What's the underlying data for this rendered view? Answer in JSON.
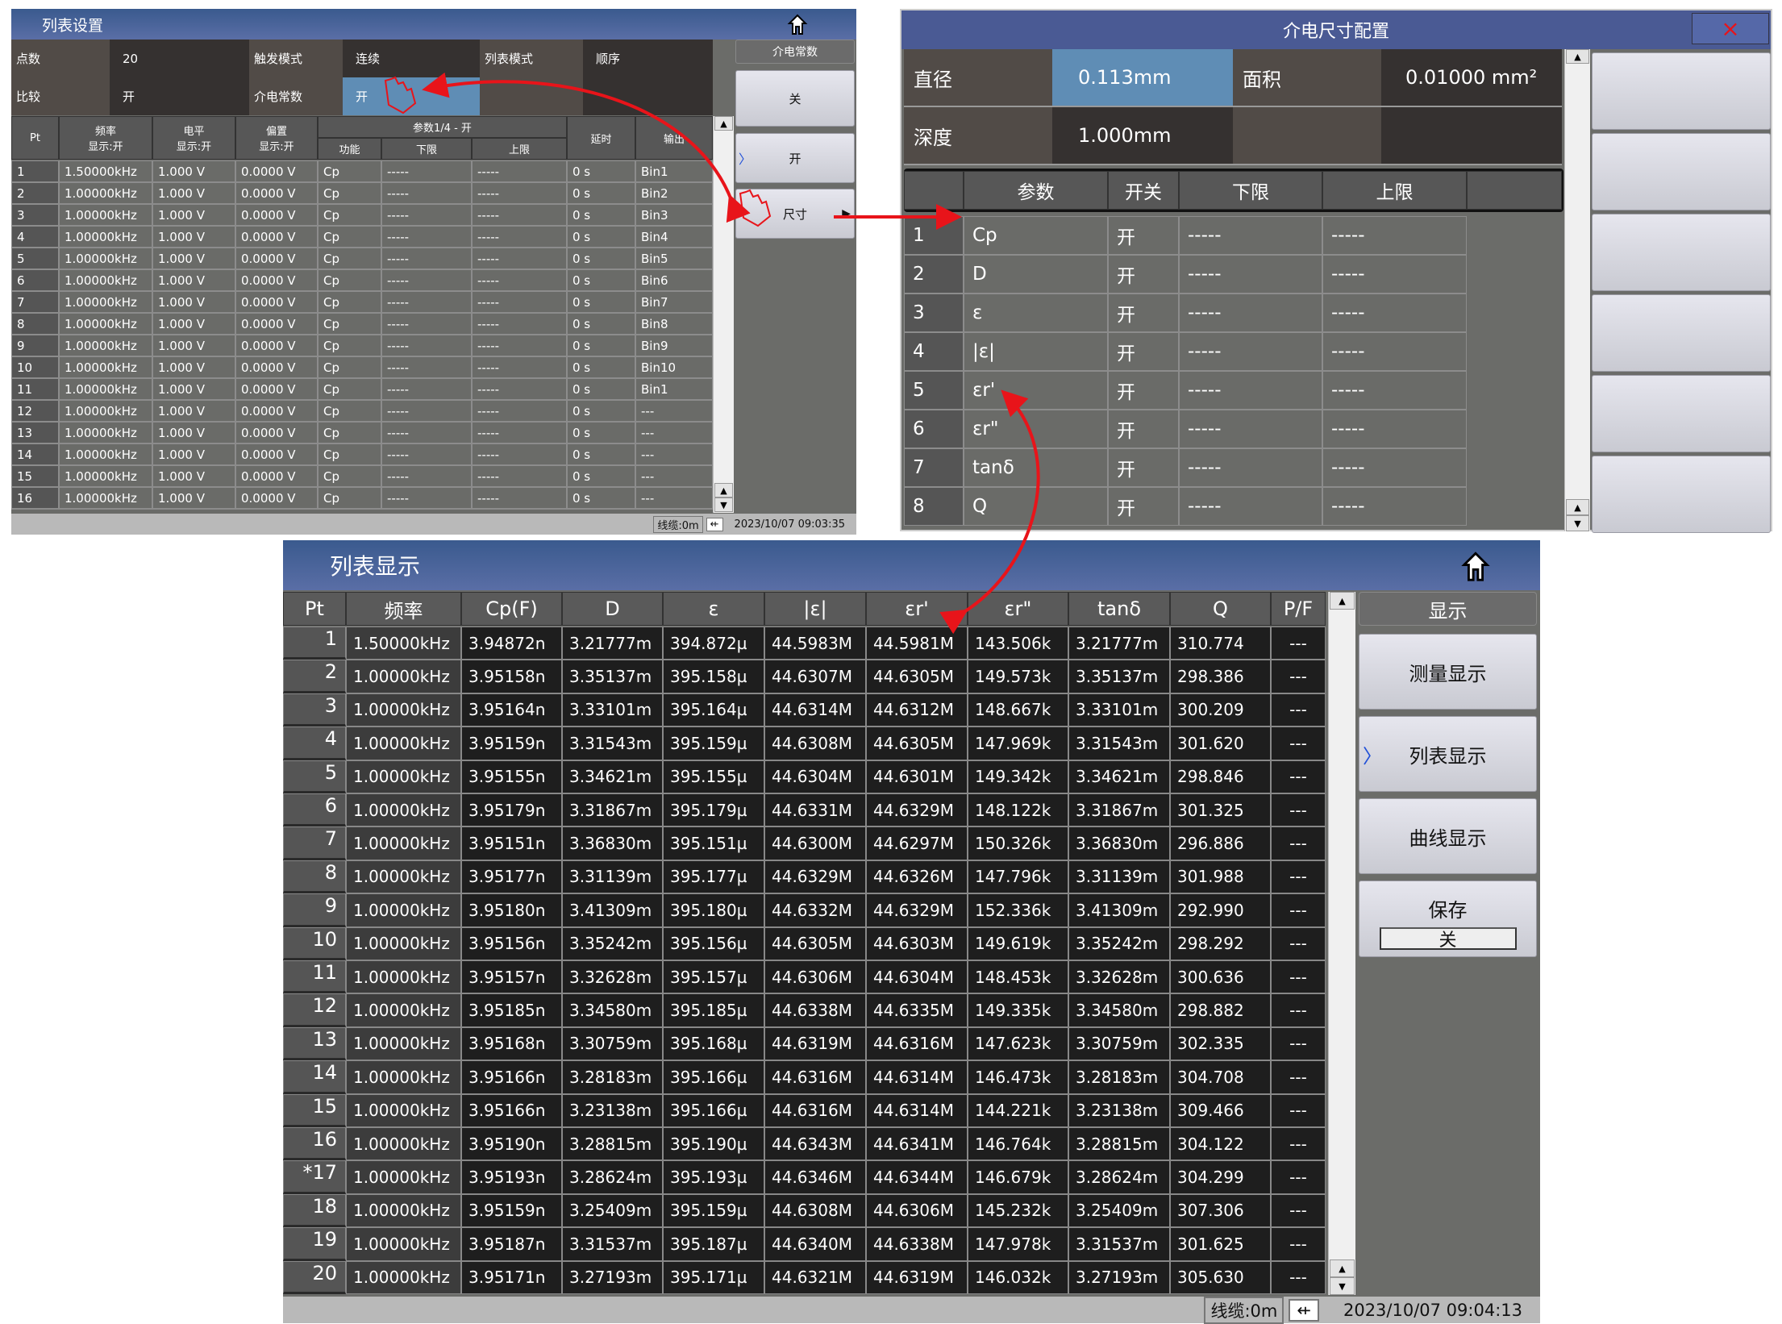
{
  "list_setup": {
    "title": "列表设置",
    "params": [
      [
        {
          "label": "点数",
          "value": "20"
        },
        {
          "label": "触发模式",
          "value": "连续"
        },
        {
          "label": "列表模式",
          "value": "顺序"
        }
      ],
      [
        {
          "label": "比较",
          "value": "开"
        },
        {
          "label": "介电常数",
          "value": "开"
        },
        {
          "label": "",
          "value": ""
        }
      ]
    ],
    "headers": [
      "Pt",
      "频率\n显示:开",
      "电平\n显示:开",
      "偏置\n显示:开",
      "功能",
      "下限",
      "上限",
      "延时",
      "输出"
    ],
    "group_header": "参数1/4 - 开",
    "rows": [
      [
        "1",
        "1.50000kHz",
        "1.000 V",
        "0.0000 V",
        "Cp",
        "-----",
        "-----",
        "0 s",
        "Bin1"
      ],
      [
        "2",
        "1.00000kHz",
        "1.000 V",
        "0.0000 V",
        "Cp",
        "-----",
        "-----",
        "0 s",
        "Bin2"
      ],
      [
        "3",
        "1.00000kHz",
        "1.000 V",
        "0.0000 V",
        "Cp",
        "-----",
        "-----",
        "0 s",
        "Bin3"
      ],
      [
        "4",
        "1.00000kHz",
        "1.000 V",
        "0.0000 V",
        "Cp",
        "-----",
        "-----",
        "0 s",
        "Bin4"
      ],
      [
        "5",
        "1.00000kHz",
        "1.000 V",
        "0.0000 V",
        "Cp",
        "-----",
        "-----",
        "0 s",
        "Bin5"
      ],
      [
        "6",
        "1.00000kHz",
        "1.000 V",
        "0.0000 V",
        "Cp",
        "-----",
        "-----",
        "0 s",
        "Bin6"
      ],
      [
        "7",
        "1.00000kHz",
        "1.000 V",
        "0.0000 V",
        "Cp",
        "-----",
        "-----",
        "0 s",
        "Bin7"
      ],
      [
        "8",
        "1.00000kHz",
        "1.000 V",
        "0.0000 V",
        "Cp",
        "-----",
        "-----",
        "0 s",
        "Bin8"
      ],
      [
        "9",
        "1.00000kHz",
        "1.000 V",
        "0.0000 V",
        "Cp",
        "-----",
        "-----",
        "0 s",
        "Bin9"
      ],
      [
        "10",
        "1.00000kHz",
        "1.000 V",
        "0.0000 V",
        "Cp",
        "-----",
        "-----",
        "0 s",
        "Bin10"
      ],
      [
        "11",
        "1.00000kHz",
        "1.000 V",
        "0.0000 V",
        "Cp",
        "-----",
        "-----",
        "0 s",
        "Bin1"
      ],
      [
        "12",
        "1.00000kHz",
        "1.000 V",
        "0.0000 V",
        "Cp",
        "-----",
        "-----",
        "0 s",
        "---"
      ],
      [
        "13",
        "1.00000kHz",
        "1.000 V",
        "0.0000 V",
        "Cp",
        "-----",
        "-----",
        "0 s",
        "---"
      ],
      [
        "14",
        "1.00000kHz",
        "1.000 V",
        "0.0000 V",
        "Cp",
        "-----",
        "-----",
        "0 s",
        "---"
      ],
      [
        "15",
        "1.00000kHz",
        "1.000 V",
        "0.0000 V",
        "Cp",
        "-----",
        "-----",
        "0 s",
        "---"
      ],
      [
        "16",
        "1.00000kHz",
        "1.000 V",
        "0.0000 V",
        "Cp",
        "-----",
        "-----",
        "0 s",
        "---"
      ]
    ],
    "side": {
      "header": "介电常数",
      "buttons": [
        "关",
        "开",
        "尺寸"
      ],
      "selected": 1
    },
    "status": {
      "cable": "线缆:0m",
      "datetime": "2023/10/07 09:03:35"
    }
  },
  "dielectric_config": {
    "title": "介电尺寸配置",
    "close": "×",
    "params": [
      [
        {
          "label": "直径",
          "value": "0.113mm"
        },
        {
          "label": "面积",
          "value": "0.01000 mm²"
        }
      ],
      [
        {
          "label": "深度",
          "value": "1.000mm"
        },
        {
          "label": "",
          "value": ""
        }
      ]
    ],
    "headers": [
      "",
      "参数",
      "开关",
      "下限",
      "上限",
      ""
    ],
    "rows": [
      [
        "1",
        "Cp",
        "开",
        "-----",
        "-----"
      ],
      [
        "2",
        "D",
        "开",
        "-----",
        "-----"
      ],
      [
        "3",
        "ε",
        "开",
        "-----",
        "-----"
      ],
      [
        "4",
        "|ε|",
        "开",
        "-----",
        "-----"
      ],
      [
        "5",
        "εr'",
        "开",
        "-----",
        "-----"
      ],
      [
        "6",
        "εr\"",
        "开",
        "-----",
        "-----"
      ],
      [
        "7",
        "tanδ",
        "开",
        "-----",
        "-----"
      ],
      [
        "8",
        "Q",
        "开",
        "-----",
        "-----"
      ]
    ]
  },
  "list_display": {
    "title": "列表显示",
    "headers": [
      "Pt",
      "频率",
      "Cp(F)",
      "D",
      "ε",
      "|ε|",
      "εr'",
      "εr\"",
      "tanδ",
      "Q",
      "P/F"
    ],
    "rows": [
      [
        "1",
        "1.50000kHz",
        "3.94872n",
        "3.21777m",
        "394.872µ",
        "44.5983M",
        "44.5981M",
        "143.506k",
        "3.21777m",
        "310.774",
        "---"
      ],
      [
        "2",
        "1.00000kHz",
        "3.95158n",
        "3.35137m",
        "395.158µ",
        "44.6307M",
        "44.6305M",
        "149.573k",
        "3.35137m",
        "298.386",
        "---"
      ],
      [
        "3",
        "1.00000kHz",
        "3.95164n",
        "3.33101m",
        "395.164µ",
        "44.6314M",
        "44.6312M",
        "148.667k",
        "3.33101m",
        "300.209",
        "---"
      ],
      [
        "4",
        "1.00000kHz",
        "3.95159n",
        "3.31543m",
        "395.159µ",
        "44.6308M",
        "44.6305M",
        "147.969k",
        "3.31543m",
        "301.620",
        "---"
      ],
      [
        "5",
        "1.00000kHz",
        "3.95155n",
        "3.34621m",
        "395.155µ",
        "44.6304M",
        "44.6301M",
        "149.342k",
        "3.34621m",
        "298.846",
        "---"
      ],
      [
        "6",
        "1.00000kHz",
        "3.95179n",
        "3.31867m",
        "395.179µ",
        "44.6331M",
        "44.6329M",
        "148.122k",
        "3.31867m",
        "301.325",
        "---"
      ],
      [
        "7",
        "1.00000kHz",
        "3.95151n",
        "3.36830m",
        "395.151µ",
        "44.6300M",
        "44.6297M",
        "150.326k",
        "3.36830m",
        "296.886",
        "---"
      ],
      [
        "8",
        "1.00000kHz",
        "3.95177n",
        "3.31139m",
        "395.177µ",
        "44.6329M",
        "44.6326M",
        "147.796k",
        "3.31139m",
        "301.988",
        "---"
      ],
      [
        "9",
        "1.00000kHz",
        "3.95180n",
        "3.41309m",
        "395.180µ",
        "44.6332M",
        "44.6329M",
        "152.336k",
        "3.41309m",
        "292.990",
        "---"
      ],
      [
        "10",
        "1.00000kHz",
        "3.95156n",
        "3.35242m",
        "395.156µ",
        "44.6305M",
        "44.6303M",
        "149.619k",
        "3.35242m",
        "298.292",
        "---"
      ],
      [
        "11",
        "1.00000kHz",
        "3.95157n",
        "3.32628m",
        "395.157µ",
        "44.6306M",
        "44.6304M",
        "148.453k",
        "3.32628m",
        "300.636",
        "---"
      ],
      [
        "12",
        "1.00000kHz",
        "3.95185n",
        "3.34580m",
        "395.185µ",
        "44.6338M",
        "44.6335M",
        "149.335k",
        "3.34580m",
        "298.882",
        "---"
      ],
      [
        "13",
        "1.00000kHz",
        "3.95168n",
        "3.30759m",
        "395.168µ",
        "44.6319M",
        "44.6316M",
        "147.623k",
        "3.30759m",
        "302.335",
        "---"
      ],
      [
        "14",
        "1.00000kHz",
        "3.95166n",
        "3.28183m",
        "395.166µ",
        "44.6316M",
        "44.6314M",
        "146.473k",
        "3.28183m",
        "304.708",
        "---"
      ],
      [
        "15",
        "1.00000kHz",
        "3.95166n",
        "3.23138m",
        "395.166µ",
        "44.6316M",
        "44.6314M",
        "144.221k",
        "3.23138m",
        "309.466",
        "---"
      ],
      [
        "16",
        "1.00000kHz",
        "3.95190n",
        "3.28815m",
        "395.190µ",
        "44.6343M",
        "44.6341M",
        "146.764k",
        "3.28815m",
        "304.122",
        "---"
      ],
      [
        "*17",
        "1.00000kHz",
        "3.95193n",
        "3.28624m",
        "395.193µ",
        "44.6346M",
        "44.6344M",
        "146.679k",
        "3.28624m",
        "304.299",
        "---"
      ],
      [
        "18",
        "1.00000kHz",
        "3.95159n",
        "3.25409m",
        "395.159µ",
        "44.6308M",
        "44.6306M",
        "145.232k",
        "3.25409m",
        "307.306",
        "---"
      ],
      [
        "19",
        "1.00000kHz",
        "3.95187n",
        "3.31537m",
        "395.187µ",
        "44.6340M",
        "44.6338M",
        "147.978k",
        "3.31537m",
        "301.625",
        "---"
      ],
      [
        "20",
        "1.00000kHz",
        "3.95171n",
        "3.27193m",
        "395.171µ",
        "44.6321M",
        "44.6319M",
        "146.032k",
        "3.27193m",
        "305.630",
        "---"
      ]
    ],
    "side": {
      "header": "显示",
      "buttons": [
        "测量显示",
        "列表显示",
        "曲线显示"
      ],
      "selected": 1,
      "save_label": "保存",
      "save_value": "关"
    },
    "status": {
      "cable": "线缆:0m",
      "datetime": "2023/10/07 09:04:13"
    }
  },
  "colors": {
    "accent_blue": "#5f8db5",
    "annotation_red": "#e8141a",
    "title_bar": "#4a5e96"
  },
  "icons": [
    "home-icon",
    "close-icon",
    "usb-icon",
    "hand-pointer-icon",
    "arrow-icon"
  ]
}
